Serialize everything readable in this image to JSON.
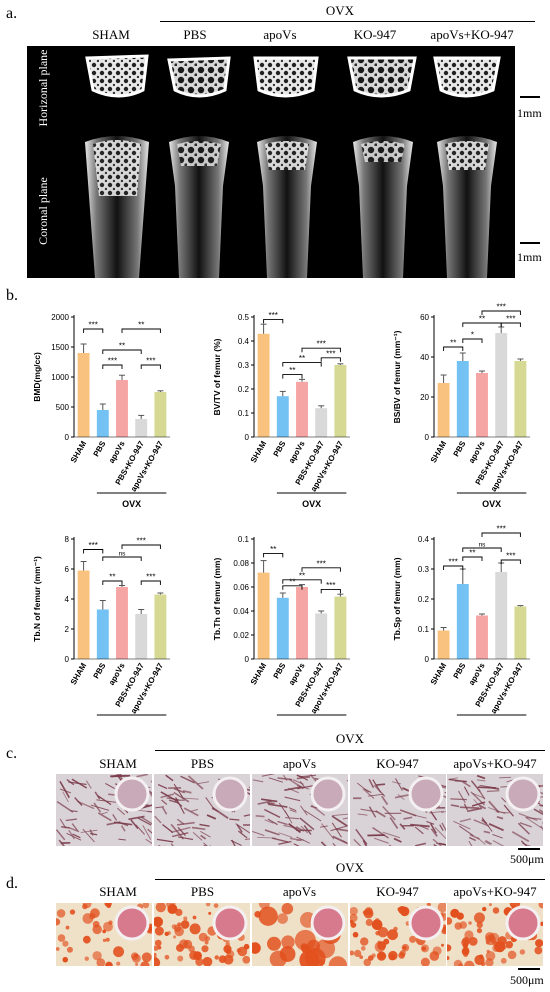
{
  "panel_a": {
    "label": "a.",
    "ovx": "OVX",
    "groups": [
      "SHAM",
      "PBS",
      "apoVs",
      "KO-947",
      "apoVs+KO-947"
    ],
    "row_labels": [
      "Horizonal plane",
      "Coronal plane"
    ],
    "scale": [
      "1mm",
      "1mm"
    ]
  },
  "panel_b": {
    "label": "b.",
    "ovx": "OVX"
  },
  "panel_c": {
    "label": "c.",
    "ovx": "OVX",
    "groups": [
      "SHAM",
      "PBS",
      "apoVs",
      "KO-947",
      "apoVs+KO-947"
    ],
    "scale": "500μm",
    "colors": {
      "bg": "#d9d2d6",
      "stain": "#7a3a4a",
      "well": "#c8aab8"
    }
  },
  "panel_d": {
    "label": "d.",
    "ovx": "OVX",
    "groups": [
      "SHAM",
      "PBS",
      "apoVs",
      "KO-947",
      "apoVs+KO-947"
    ],
    "scale": "500μm",
    "colors": {
      "bg": "#efe0c8",
      "stain": "#e2501e",
      "well": "#d77a8e"
    }
  },
  "chart_data": [
    {
      "type": "bar",
      "ylabel": "BMD(mg/cc)",
      "ylim": [
        0,
        2000
      ],
      "yticks": [
        0,
        500,
        1000,
        1500,
        2000
      ],
      "categories": [
        "SHAM",
        "PBS",
        "apoVs",
        "PBS+KO-947",
        "apoVs+KO-947"
      ],
      "values": [
        1400,
        450,
        950,
        300,
        750
      ],
      "errors": [
        150,
        100,
        80,
        60,
        20
      ],
      "xgroup": "OVX",
      "sig": [
        {
          "from": 0,
          "to": 1,
          "label": "***",
          "y": 1800
        },
        {
          "from": 2,
          "to": 4,
          "label": "**",
          "y": 1800
        },
        {
          "from": 1,
          "to": 3,
          "label": "**",
          "y": 1450
        },
        {
          "from": 1,
          "to": 2,
          "label": "***",
          "y": 1200
        },
        {
          "from": 3,
          "to": 4,
          "label": "***",
          "y": 1200
        }
      ]
    },
    {
      "type": "bar",
      "ylabel": "BV/TV of femur (%)",
      "ylim": [
        0,
        0.5
      ],
      "yticks": [
        0,
        0.1,
        0.2,
        0.3,
        0.4,
        0.5
      ],
      "categories": [
        "SHAM",
        "PBS",
        "apoVs",
        "PBS+KO-947",
        "apoVs+KO-947"
      ],
      "values": [
        0.43,
        0.17,
        0.23,
        0.12,
        0.3
      ],
      "errors": [
        0.04,
        0.02,
        0.01,
        0.01,
        0.005
      ],
      "xgroup": "OVX",
      "sig": [
        {
          "from": 0,
          "to": 1,
          "label": "***",
          "y": 0.49
        },
        {
          "from": 2,
          "to": 4,
          "label": "***",
          "y": 0.37
        },
        {
          "from": 1,
          "to": 3,
          "label": "**",
          "y": 0.31
        },
        {
          "from": 1,
          "to": 2,
          "label": "**",
          "y": 0.26
        },
        {
          "from": 3,
          "to": 4,
          "label": "***",
          "y": 0.33
        }
      ]
    },
    {
      "type": "bar",
      "ylabel": "BS/BV of femur (mm⁻¹)",
      "ylim": [
        0,
        60
      ],
      "yticks": [
        0,
        20,
        40,
        60
      ],
      "categories": [
        "SHAM",
        "PBS",
        "apoVs",
        "PBS+KO-947",
        "apoVs+KO-947"
      ],
      "values": [
        27,
        38,
        32,
        52,
        38
      ],
      "errors": [
        4,
        4,
        1,
        3,
        1
      ],
      "xgroup": "OVX",
      "sig": [
        {
          "from": 2,
          "to": 4,
          "label": "***",
          "y": 63
        },
        {
          "from": 1,
          "to": 3,
          "label": "**",
          "y": 57
        },
        {
          "from": 3,
          "to": 4,
          "label": "***",
          "y": 57
        },
        {
          "from": 0,
          "to": 1,
          "label": "**",
          "y": 45
        },
        {
          "from": 1,
          "to": 2,
          "label": "*",
          "y": 49
        }
      ]
    },
    {
      "type": "bar",
      "ylabel": "Tb.N of femur (mm⁻¹)",
      "ylim": [
        0,
        8
      ],
      "yticks": [
        0,
        2,
        4,
        6,
        8
      ],
      "categories": [
        "SHAM",
        "PBS",
        "apoVs",
        "PBS+KO-947",
        "apoVs+KO-947"
      ],
      "values": [
        5.9,
        3.3,
        4.8,
        3.0,
        4.3
      ],
      "errors": [
        0.6,
        0.6,
        0.1,
        0.3,
        0.1
      ],
      "xgroup": "OVX",
      "sig": [
        {
          "from": 0,
          "to": 1,
          "label": "***",
          "y": 7.3
        },
        {
          "from": 2,
          "to": 4,
          "label": "***",
          "y": 7.6
        },
        {
          "from": 1,
          "to": 3,
          "label": "ns",
          "y": 6.8
        },
        {
          "from": 1,
          "to": 2,
          "label": "**",
          "y": 5.2
        },
        {
          "from": 3,
          "to": 4,
          "label": "***",
          "y": 5.2
        }
      ]
    },
    {
      "type": "bar",
      "ylabel": "Tb.Th of femur (mm)",
      "ylim": [
        0,
        0.1
      ],
      "yticks": [
        0,
        0.02,
        0.04,
        0.06,
        0.08,
        0.1
      ],
      "categories": [
        "SHAM",
        "PBS",
        "apoVs",
        "PBS+KO-947",
        "apoVs+KO-947"
      ],
      "values": [
        0.072,
        0.051,
        0.06,
        0.038,
        0.052
      ],
      "errors": [
        0.01,
        0.004,
        0.002,
        0.002,
        0.002
      ],
      "xgroup": "OVX",
      "sig": [
        {
          "from": 0,
          "to": 1,
          "label": "**",
          "y": 0.088
        },
        {
          "from": 2,
          "to": 4,
          "label": "***",
          "y": 0.076
        },
        {
          "from": 1,
          "to": 3,
          "label": "**",
          "y": 0.066
        },
        {
          "from": 1,
          "to": 2,
          "label": "**",
          "y": 0.061
        },
        {
          "from": 3,
          "to": 4,
          "label": "***",
          "y": 0.058
        }
      ]
    },
    {
      "type": "bar",
      "ylabel": "Tb.Sp of femur (mm)",
      "ylim": [
        0,
        0.4
      ],
      "yticks": [
        0,
        0.1,
        0.2,
        0.3,
        0.4
      ],
      "categories": [
        "SHAM",
        "PBS",
        "apoVs",
        "PBS+KO-947",
        "apoVs+KO-947"
      ],
      "values": [
        0.095,
        0.25,
        0.145,
        0.29,
        0.175
      ],
      "errors": [
        0.01,
        0.05,
        0.005,
        0.03,
        0.003
      ],
      "xgroup": "OVX",
      "sig": [
        {
          "from": 2,
          "to": 4,
          "label": "***",
          "y": 0.42
        },
        {
          "from": 1,
          "to": 3,
          "label": "ns",
          "y": 0.37
        },
        {
          "from": 0,
          "to": 1,
          "label": "***",
          "y": 0.31
        },
        {
          "from": 1,
          "to": 2,
          "label": "**",
          "y": 0.34
        },
        {
          "from": 3,
          "to": 4,
          "label": "***",
          "y": 0.33
        }
      ]
    }
  ],
  "bar_colors": [
    "#f9c27f",
    "#74c1f3",
    "#f6a5a5",
    "#d9d9d9",
    "#d6d994"
  ],
  "err_color": "#555555"
}
